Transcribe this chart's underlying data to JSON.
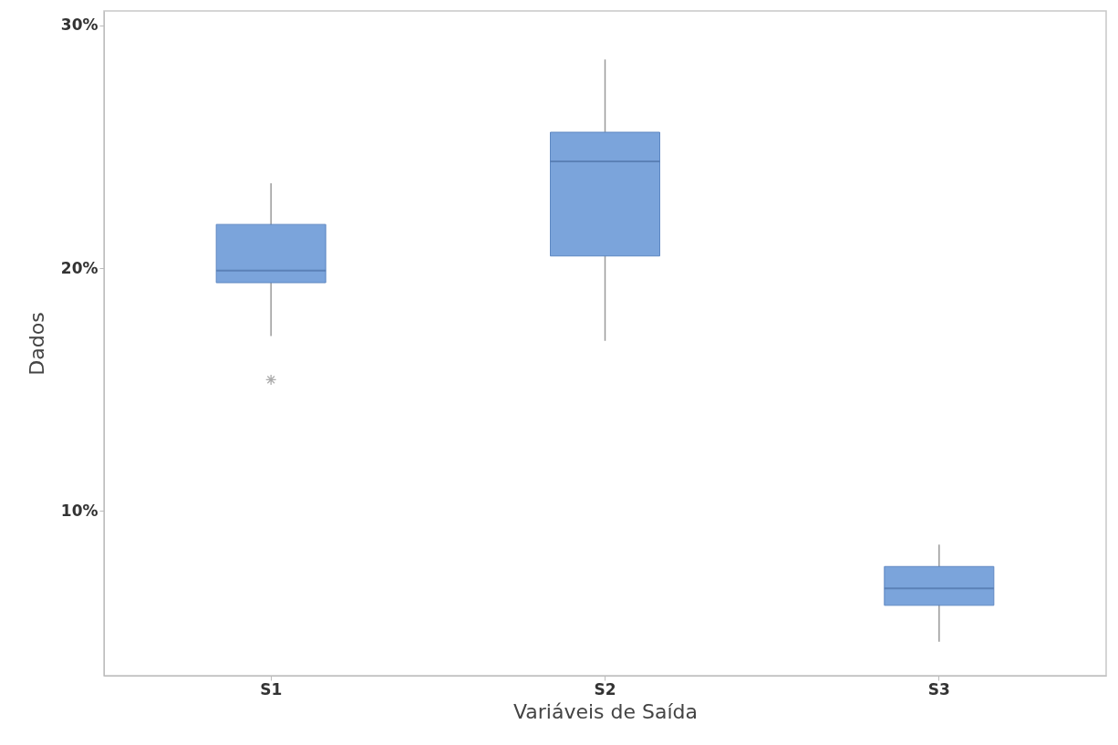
{
  "chart_data": {
    "type": "box",
    "xlabel": "Variáveis de Saída",
    "ylabel": "Dados",
    "categories": [
      "S1",
      "S2",
      "S3"
    ],
    "ylim": [
      3.2,
      30.6
    ],
    "yticks": [
      {
        "value": 10,
        "label": "10%"
      },
      {
        "value": 20,
        "label": "20%"
      },
      {
        "value": 30,
        "label": "30%"
      }
    ],
    "marker": "cross",
    "series": [
      {
        "color": "#7ba4db",
        "boxes": [
          {
            "low": 17.2,
            "q1": 19.4,
            "median": 19.9,
            "q3": 21.8,
            "high": 23.5,
            "outliers": [
              15.4
            ]
          },
          {
            "low": 17.0,
            "q1": 20.5,
            "median": 24.4,
            "q3": 25.6,
            "high": 28.6
          },
          {
            "low": 4.6,
            "q1": 6.1,
            "median": 6.8,
            "q3": 7.7,
            "high": 8.6
          }
        ]
      }
    ]
  }
}
